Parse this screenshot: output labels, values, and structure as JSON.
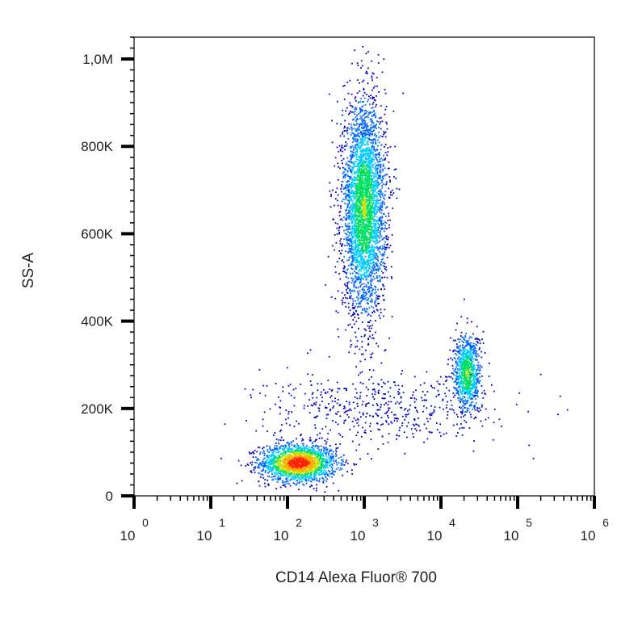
{
  "chart_data": {
    "type": "scatter",
    "xlabel": "CD14 Alexa Fluor® 700",
    "ylabel": "SS-A",
    "x_scale": "log",
    "xlim": [
      1,
      1000000
    ],
    "ylim": [
      0,
      1050000
    ],
    "x_ticks": [
      {
        "base": "10",
        "exp": "0"
      },
      {
        "base": "10",
        "exp": "1"
      },
      {
        "base": "10",
        "exp": "2"
      },
      {
        "base": "10",
        "exp": "3"
      },
      {
        "base": "10",
        "exp": "4"
      },
      {
        "base": "10",
        "exp": "5"
      },
      {
        "base": "10",
        "exp": "6"
      }
    ],
    "y_ticks": [
      {
        "value": 0,
        "label": "0"
      },
      {
        "value": 200000,
        "label": "200K"
      },
      {
        "value": 400000,
        "label": "400K"
      },
      {
        "value": 600000,
        "label": "600K"
      },
      {
        "value": 800000,
        "label": "800K"
      },
      {
        "value": 1000000,
        "label": "1,0M"
      }
    ],
    "grid": false,
    "legend": "none",
    "colormap": [
      "#0000cc",
      "#0066ff",
      "#00ccff",
      "#00e060",
      "#c8e000",
      "#ffaa00",
      "#ff2200"
    ],
    "populations": [
      {
        "x_center": 140,
        "y_center": 75000,
        "x_spread_log": 0.25,
        "y_spread": 22000,
        "count": 1800,
        "peak_density": 1.0
      },
      {
        "x_center": 1000,
        "y_center": 660000,
        "x_spread_log": 0.14,
        "y_spread": 120000,
        "count": 3600,
        "peak_density": 0.55
      },
      {
        "x_center": 22000,
        "y_center": 280000,
        "x_spread_log": 0.09,
        "y_spread": 45000,
        "count": 900,
        "peak_density": 0.55
      },
      {
        "x_center": 1500,
        "y_center": 200000,
        "x_spread_log": 0.75,
        "y_spread": 40000,
        "count": 500,
        "peak_density": 0.05
      }
    ]
  }
}
